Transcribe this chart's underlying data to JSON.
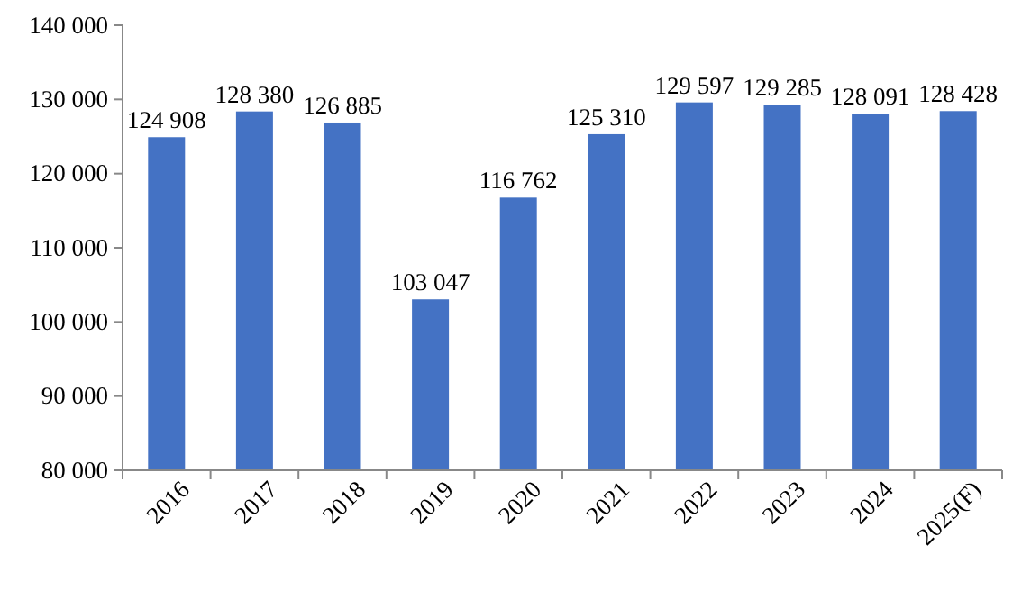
{
  "chart_data": {
    "type": "bar",
    "categories": [
      "2016",
      "2017",
      "2018",
      "2019",
      "2020",
      "2021",
      "2022",
      "2023",
      "2024",
      "2025(F)"
    ],
    "values": [
      124908,
      128380,
      126885,
      103047,
      116762,
      125310,
      129597,
      129285,
      128091,
      128428
    ],
    "value_labels": [
      "124 908",
      "128 380",
      "126 885",
      "103 047",
      "116 762",
      "125 310",
      "129 597",
      "129 285",
      "128 091",
      "128 428"
    ],
    "color": "#4472c4",
    "ylim": [
      80000,
      140000
    ],
    "yticks": [
      {
        "value": 80000,
        "label": "80 000"
      },
      {
        "value": 90000,
        "label": "90 000"
      },
      {
        "value": 100000,
        "label": "100 000"
      },
      {
        "value": 110000,
        "label": "110 000"
      },
      {
        "value": 120000,
        "label": "120 000"
      },
      {
        "value": 130000,
        "label": "130 000"
      },
      {
        "value": 140000,
        "label": "140 000"
      }
    ],
    "grid": false
  }
}
